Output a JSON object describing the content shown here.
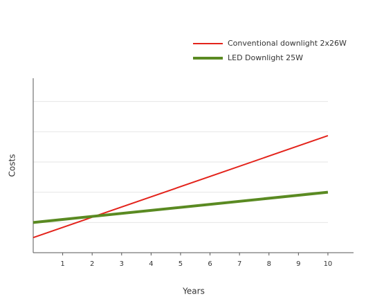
{
  "chart_data": {
    "type": "line",
    "x_label": "Years",
    "y_label": "Costs",
    "x": [
      0,
      10
    ],
    "series": [
      {
        "name": "Conventional downlight 2x26W",
        "color": "#e3231b",
        "width": 2,
        "values": [
          0.5,
          3.87
        ]
      },
      {
        "name": "LED Downlight 25W",
        "color": "#5a8a22",
        "width": 4,
        "values": [
          1.0,
          2.0
        ]
      }
    ],
    "xlim": [
      0,
      10.87
    ],
    "xticks": [
      1,
      2,
      3,
      4,
      5,
      6,
      7,
      8,
      9,
      10
    ],
    "ylim": [
      0,
      5.77
    ],
    "ygrid": [
      1,
      2,
      3,
      4,
      5
    ],
    "grid": true,
    "legend": "top-right"
  }
}
